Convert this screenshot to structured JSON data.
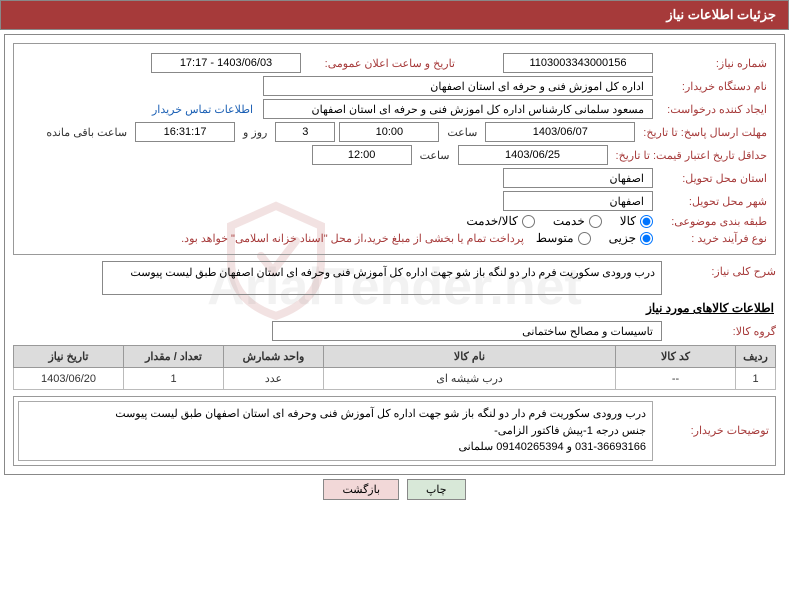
{
  "header": {
    "title": "جزئیات اطلاعات نیاز"
  },
  "fields": {
    "need_number_label": "شماره نیاز:",
    "need_number": "1103003343000156",
    "announce_datetime_label": "تاریخ و ساعت اعلان عمومی:",
    "announce_datetime": "1403/06/03 - 17:17",
    "buyer_org_label": "نام دستگاه خریدار:",
    "buyer_org": "اداره کل اموزش فنی و حرفه ای استان اصفهان",
    "requester_label": "ایجاد کننده درخواست:",
    "requester": "مسعود سلمانی کارشناس اداره کل اموزش فنی و حرفه ای استان اصفهان",
    "buyer_contact_link": "اطلاعات تماس خریدار",
    "deadline_label": "مهلت ارسال پاسخ: تا تاریخ:",
    "deadline_date": "1403/06/07",
    "time_label": "ساعت",
    "deadline_time": "10:00",
    "days_remaining": "3",
    "days_remaining_label": "روز و",
    "hours_remaining": "16:31:17",
    "hours_remaining_label": "ساعت باقی مانده",
    "validity_label": "حداقل تاریخ اعتبار قیمت: تا تاریخ:",
    "validity_date": "1403/06/25",
    "validity_time": "12:00",
    "delivery_province_label": "استان محل تحویل:",
    "delivery_province": "اصفهان",
    "delivery_city_label": "شهر محل تحویل:",
    "delivery_city": "اصفهان",
    "classification_label": "طبقه بندی موضوعی:",
    "class_options": [
      "کالا",
      "خدمت",
      "کالا/خدمت"
    ],
    "class_selected": "کالا",
    "purchase_type_label": "نوع فرآیند خرید :",
    "purchase_options": [
      "جزیی",
      "متوسط"
    ],
    "purchase_selected": "جزیی",
    "purchase_note": "پرداخت تمام یا بخشی از مبلغ خرید،از محل \"اسناد خزانه اسلامی\" خواهد بود.",
    "desc_label": "شرح کلی نیاز:",
    "desc_text": "درب ورودی سکوریت فرم دار دو لنگه باز شو جهت اداره کل آموزش فنی وحرفه ای استان اصفهان طبق لیست پیوست",
    "goods_section_title": "اطلاعات کالاهای مورد نیاز",
    "goods_group_label": "گروه کالا:",
    "goods_group": "تاسیسات و مصالح ساختمانی"
  },
  "table": {
    "columns": [
      "ردیف",
      "کد کالا",
      "نام کالا",
      "واحد شمارش",
      "تعداد / مقدار",
      "تاریخ نیاز"
    ],
    "widths": [
      "40px",
      "120px",
      "auto",
      "100px",
      "100px",
      "110px"
    ],
    "rows": [
      [
        "1",
        "--",
        "درب شیشه ای",
        "عدد",
        "1",
        "1403/06/20"
      ]
    ]
  },
  "buyer_notes": {
    "label": "توضیحات خریدار:",
    "text": "درب ورودی سکوریت فرم دار دو لنگه باز شو جهت اداره کل آموزش فنی وحرفه ای استان اصفهان طبق لیست پیوست\nجنس درجه 1-پیش فاکتور الزامی-\n031-36693166 و 09140265394 سلمانی"
  },
  "buttons": {
    "print": "چاپ",
    "back": "بازگشت"
  },
  "colors": {
    "header_bg": "#a63a3a",
    "label_color": "#a63a3a",
    "link_color": "#1a5fb4",
    "th_bg": "#dcdcdc"
  }
}
